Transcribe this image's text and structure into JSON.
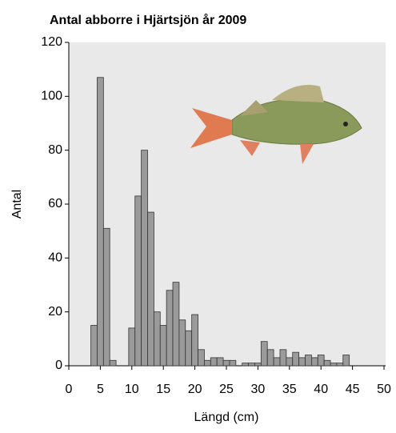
{
  "chart_data": {
    "type": "bar",
    "title": "Antal abborre i Hjärtsjön år 2009",
    "x_label": "Längd (cm)",
    "y_label": "Antal",
    "x": [
      4,
      5,
      6,
      7,
      8,
      9,
      10,
      11,
      12,
      13,
      14,
      15,
      16,
      17,
      18,
      19,
      20,
      21,
      22,
      23,
      24,
      25,
      26,
      27,
      28,
      29,
      30,
      31,
      32,
      33,
      34,
      35,
      36,
      37,
      38,
      39,
      40,
      41,
      42,
      43,
      44
    ],
    "values": [
      15,
      107,
      51,
      2,
      0,
      0,
      14,
      63,
      80,
      57,
      20,
      15,
      28,
      31,
      17,
      13,
      19,
      6,
      2,
      3,
      3,
      2,
      2,
      0,
      1,
      1,
      1,
      9,
      6,
      3,
      6,
      3,
      5,
      3,
      4,
      3,
      4,
      2,
      1,
      1,
      4
    ],
    "color": "#9a9a9a",
    "xlim": [
      0,
      50
    ],
    "xticks": [
      0,
      5,
      10,
      15,
      20,
      25,
      30,
      35,
      40,
      45,
      50
    ],
    "ylim": [
      0,
      120
    ],
    "yticks": [
      0,
      20,
      40,
      60,
      80,
      100,
      120
    ]
  }
}
